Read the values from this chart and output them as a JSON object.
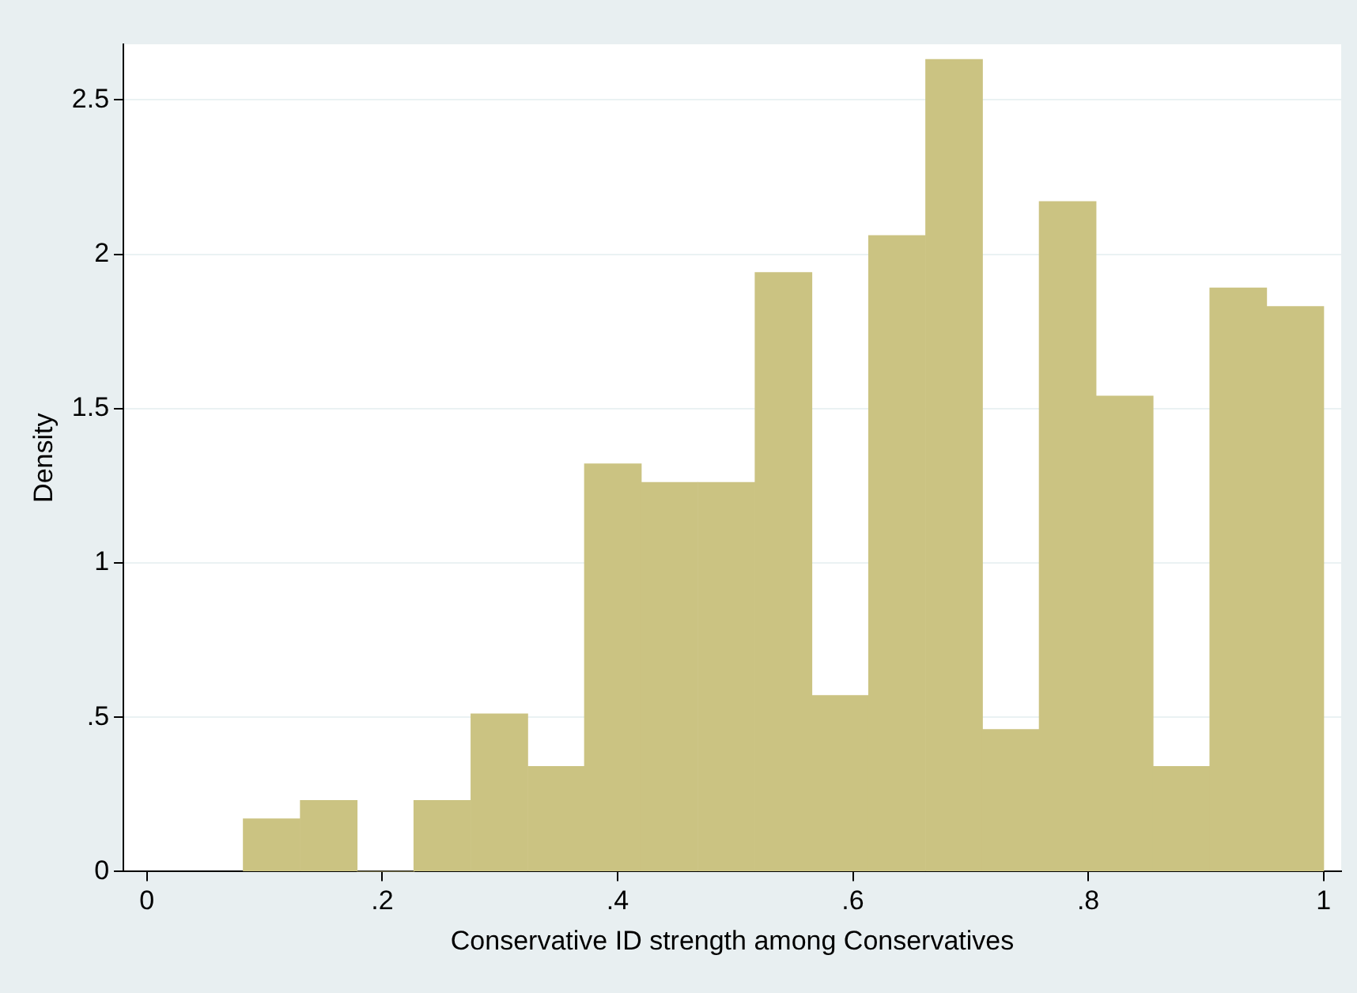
{
  "chart_data": {
    "type": "histogram",
    "xlabel": "Conservative ID strength among Conservatives",
    "ylabel": "Density",
    "bins": [
      0.082,
      0.13,
      0.179,
      0.227,
      0.275,
      0.324,
      0.372,
      0.42,
      0.468,
      0.517,
      0.565,
      0.613,
      0.662,
      0.71,
      0.758,
      0.807,
      0.855,
      0.903,
      0.952,
      1.0
    ],
    "values": [
      0.17,
      0.23,
      0,
      0.23,
      0.51,
      0.34,
      1.32,
      1.26,
      1.26,
      1.94,
      0.57,
      2.06,
      2.63,
      0.46,
      2.17,
      1.54,
      0.34,
      1.89,
      1.83
    ],
    "color": "#cbc382",
    "xlim": [
      -0.02,
      1.015
    ],
    "xticks": [
      0,
      {
        "value": 0.2,
        "label": ".2"
      },
      {
        "value": 0.4,
        "label": ".4"
      },
      {
        "value": 0.6,
        "label": ".6"
      },
      {
        "value": 0.8,
        "label": ".8"
      },
      1
    ],
    "ylim": [
      0,
      2.68
    ],
    "yticks": [
      0,
      {
        "value": 0.5,
        "label": ".5"
      },
      1,
      1.5,
      2,
      2.5
    ],
    "grid": "y"
  }
}
